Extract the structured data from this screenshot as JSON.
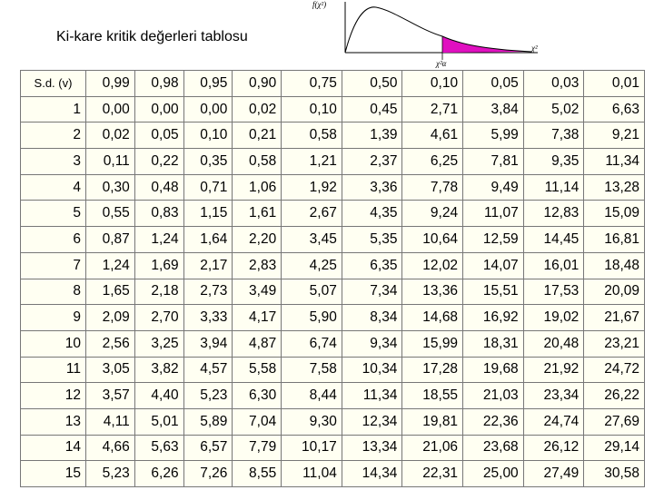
{
  "header": {
    "title": "Ki-kare kritik değerleri tablosu"
  },
  "figure": {
    "y_label": "f(χ²)",
    "x_label": "χ²",
    "critical_label": "χ²α"
  },
  "table": {
    "columns": [
      "S.d. (v)",
      "0,99",
      "0,98",
      "0,95",
      "0,90",
      "0,75",
      "0,50",
      "0,10",
      "0,05",
      "0,03",
      "0,01"
    ],
    "rows": [
      [
        "1",
        "0,00",
        "0,00",
        "0,00",
        "0,02",
        "0,10",
        "0,45",
        "2,71",
        "3,84",
        "5,02",
        "6,63"
      ],
      [
        "2",
        "0,02",
        "0,05",
        "0,10",
        "0,21",
        "0,58",
        "1,39",
        "4,61",
        "5,99",
        "7,38",
        "9,21"
      ],
      [
        "3",
        "0,11",
        "0,22",
        "0,35",
        "0,58",
        "1,21",
        "2,37",
        "6,25",
        "7,81",
        "9,35",
        "11,34"
      ],
      [
        "4",
        "0,30",
        "0,48",
        "0,71",
        "1,06",
        "1,92",
        "3,36",
        "7,78",
        "9,49",
        "11,14",
        "13,28"
      ],
      [
        "5",
        "0,55",
        "0,83",
        "1,15",
        "1,61",
        "2,67",
        "4,35",
        "9,24",
        "11,07",
        "12,83",
        "15,09"
      ],
      [
        "6",
        "0,87",
        "1,24",
        "1,64",
        "2,20",
        "3,45",
        "5,35",
        "10,64",
        "12,59",
        "14,45",
        "16,81"
      ],
      [
        "7",
        "1,24",
        "1,69",
        "2,17",
        "2,83",
        "4,25",
        "6,35",
        "12,02",
        "14,07",
        "16,01",
        "18,48"
      ],
      [
        "8",
        "1,65",
        "2,18",
        "2,73",
        "3,49",
        "5,07",
        "7,34",
        "13,36",
        "15,51",
        "17,53",
        "20,09"
      ],
      [
        "9",
        "2,09",
        "2,70",
        "3,33",
        "4,17",
        "5,90",
        "8,34",
        "14,68",
        "16,92",
        "19,02",
        "21,67"
      ],
      [
        "10",
        "2,56",
        "3,25",
        "3,94",
        "4,87",
        "6,74",
        "9,34",
        "15,99",
        "18,31",
        "20,48",
        "23,21"
      ],
      [
        "11",
        "3,05",
        "3,82",
        "4,57",
        "5,58",
        "7,58",
        "10,34",
        "17,28",
        "19,68",
        "21,92",
        "24,72"
      ],
      [
        "12",
        "3,57",
        "4,40",
        "5,23",
        "6,30",
        "8,44",
        "11,34",
        "18,55",
        "21,03",
        "23,34",
        "26,22"
      ],
      [
        "13",
        "4,11",
        "5,01",
        "5,89",
        "7,04",
        "9,30",
        "12,34",
        "19,81",
        "22,36",
        "24,74",
        "27,69"
      ],
      [
        "14",
        "4,66",
        "5,63",
        "6,57",
        "7,79",
        "10,17",
        "13,34",
        "21,06",
        "23,68",
        "26,12",
        "29,14"
      ],
      [
        "15",
        "5,23",
        "6,26",
        "7,26",
        "8,55",
        "11,04",
        "14,34",
        "22,31",
        "25,00",
        "27,49",
        "30,58"
      ]
    ]
  }
}
